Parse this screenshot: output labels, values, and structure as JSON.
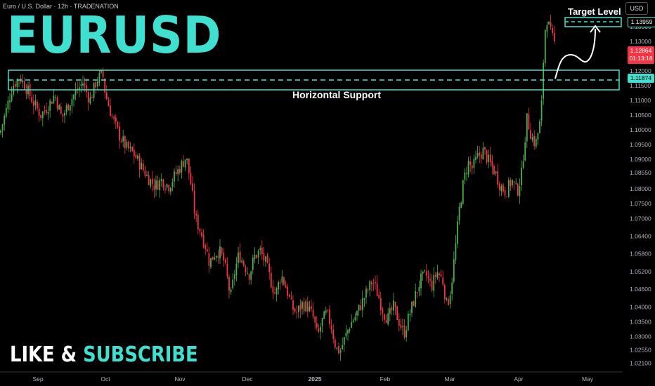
{
  "header": {
    "symbol_line": "Euro / U.S. Dollar · 12h · TRADENATION"
  },
  "overlay": {
    "title": "EURUSD",
    "cta_part1": "LIKE & ",
    "cta_part2": "SUBSCRIBE",
    "support_label": "Horizontal Support",
    "target_label": "Target Level"
  },
  "price_axis": {
    "unit": "USD",
    "target_price": "1.13959",
    "last_price": "1.12864",
    "countdown": "01:13:18",
    "support_price": "1.11874"
  },
  "colors": {
    "bull": "#4caf50",
    "bear": "#f23645",
    "accent": "#40e0d0",
    "background": "#000000"
  },
  "chart_data": {
    "type": "candlestick",
    "title": "",
    "xlabel": "",
    "ylabel": "",
    "ylim": [
      1.018,
      1.144
    ],
    "y_ticks": [
      1.021,
      1.0255,
      1.03,
      1.035,
      1.04,
      1.046,
      1.052,
      1.058,
      1.064,
      1.07,
      1.075,
      1.08,
      1.0855,
      1.09,
      1.095,
      1.1,
      1.105,
      1.11,
      1.115,
      1.12,
      1.125,
      1.13,
      1.135
    ],
    "y_tick_labels": [
      "1.02100",
      "1.02550",
      "1.03000",
      "1.03500",
      "1.04000",
      "1.04600",
      "1.05200",
      "1.05800",
      "1.06400",
      "1.07000",
      "1.07500",
      "1.08000",
      "1.08550",
      "1.09000",
      "1.09500",
      "1.10000",
      "1.10500",
      "1.11000",
      "1.11500",
      "1.12000",
      "1.12500",
      "1.13000",
      "1.13500"
    ],
    "x_ticks": [
      "Sep",
      "Oct",
      "Nov",
      "Dec",
      "2025",
      "Feb",
      "Mar",
      "Apr",
      "May"
    ],
    "legend": "none",
    "grid": false,
    "close_path": [
      [
        0,
        1.099
      ],
      [
        8,
        1.106
      ],
      [
        18,
        1.115
      ],
      [
        28,
        1.118
      ],
      [
        38,
        1.114
      ],
      [
        48,
        1.109
      ],
      [
        58,
        1.105
      ],
      [
        68,
        1.108
      ],
      [
        78,
        1.112
      ],
      [
        88,
        1.104
      ],
      [
        98,
        1.109
      ],
      [
        108,
        1.113
      ],
      [
        118,
        1.116
      ],
      [
        128,
        1.11
      ],
      [
        138,
        1.117
      ],
      [
        146,
        1.119
      ],
      [
        150,
        1.112
      ],
      [
        160,
        1.104
      ],
      [
        170,
        1.098
      ],
      [
        180,
        1.094
      ],
      [
        190,
        1.092
      ],
      [
        200,
        1.088
      ],
      [
        210,
        1.084
      ],
      [
        220,
        1.081
      ],
      [
        230,
        1.083
      ],
      [
        240,
        1.081
      ],
      [
        250,
        1.085
      ],
      [
        258,
        1.088
      ],
      [
        265,
        1.091
      ],
      [
        272,
        1.081
      ],
      [
        278,
        1.07
      ],
      [
        285,
        1.066
      ],
      [
        292,
        1.061
      ],
      [
        298,
        1.055
      ],
      [
        305,
        1.058
      ],
      [
        312,
        1.059
      ],
      [
        318,
        1.056
      ],
      [
        324,
        1.049
      ],
      [
        328,
        1.043
      ],
      [
        334,
        1.052
      ],
      [
        340,
        1.058
      ],
      [
        348,
        1.054
      ],
      [
        355,
        1.051
      ],
      [
        362,
        1.057
      ],
      [
        370,
        1.059
      ],
      [
        378,
        1.055
      ],
      [
        385,
        1.049
      ],
      [
        392,
        1.044
      ],
      [
        400,
        1.051
      ],
      [
        408,
        1.046
      ],
      [
        415,
        1.04
      ],
      [
        422,
        1.038
      ],
      [
        430,
        1.041
      ],
      [
        438,
        1.04
      ],
      [
        445,
        1.037
      ],
      [
        452,
        1.03
      ],
      [
        458,
        1.035
      ],
      [
        465,
        1.038
      ],
      [
        472,
        1.033
      ],
      [
        478,
        1.026
      ],
      [
        484,
        1.025
      ],
      [
        490,
        1.029
      ],
      [
        498,
        1.034
      ],
      [
        506,
        1.037
      ],
      [
        514,
        1.041
      ],
      [
        522,
        1.045
      ],
      [
        530,
        1.049
      ],
      [
        538,
        1.044
      ],
      [
        546,
        1.038
      ],
      [
        552,
        1.036
      ],
      [
        560,
        1.04
      ],
      [
        568,
        1.035
      ],
      [
        575,
        1.031
      ],
      [
        582,
        1.037
      ],
      [
        590,
        1.043
      ],
      [
        598,
        1.049
      ],
      [
        606,
        1.051
      ],
      [
        614,
        1.047
      ],
      [
        622,
        1.052
      ],
      [
        630,
        1.049
      ],
      [
        636,
        1.04
      ],
      [
        642,
        1.047
      ],
      [
        648,
        1.06
      ],
      [
        654,
        1.074
      ],
      [
        660,
        1.083
      ],
      [
        666,
        1.089
      ],
      [
        672,
        1.087
      ],
      [
        680,
        1.091
      ],
      [
        688,
        1.093
      ],
      [
        696,
        1.089
      ],
      [
        704,
        1.086
      ],
      [
        712,
        1.081
      ],
      [
        720,
        1.079
      ],
      [
        728,
        1.083
      ],
      [
        736,
        1.079
      ],
      [
        742,
        1.085
      ],
      [
        746,
        1.095
      ],
      [
        750,
        1.104
      ],
      [
        756,
        1.098
      ],
      [
        762,
        1.095
      ],
      [
        768,
        1.102
      ],
      [
        772,
        1.112
      ],
      [
        774,
        1.131
      ],
      [
        778,
        1.138
      ],
      [
        782,
        1.134
      ],
      [
        786,
        1.131
      ],
      [
        790,
        1.1286
      ]
    ]
  }
}
